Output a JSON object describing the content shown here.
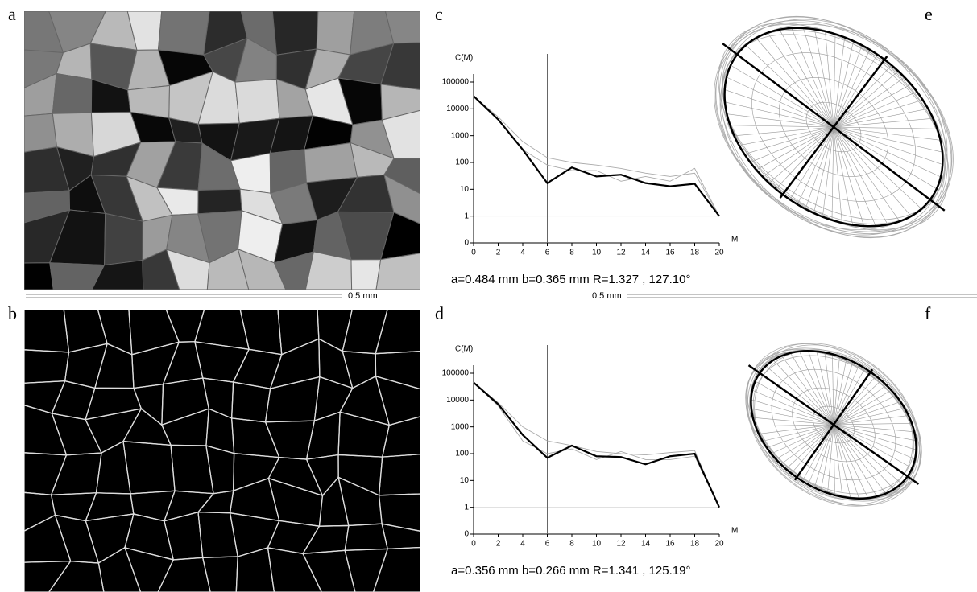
{
  "panel_labels": [
    "a",
    "b",
    "c",
    "d",
    "e",
    "f"
  ],
  "scale_bars": [
    "0.5 mm",
    "0.5 mm"
  ],
  "chart_data": [
    {
      "type": "line",
      "y_label": "C(M)",
      "x_label": "M",
      "caption": "a=0.484 mm  b=0.365 mm  R=1.327 , 127.10°",
      "x": [
        0,
        2,
        4,
        6,
        8,
        10,
        12,
        14,
        16,
        18,
        20
      ],
      "xlim": [
        0,
        20
      ],
      "xticks": [
        0,
        2,
        4,
        6,
        8,
        10,
        12,
        14,
        16,
        18,
        20
      ],
      "ylim": [
        0,
        100000
      ],
      "yticks": [
        0,
        1,
        10,
        100,
        1000,
        10000,
        100000
      ],
      "yscale": "log",
      "reference_line_x": 6,
      "reference_line_y": 1,
      "series": [
        {
          "color": "#aaaaaa",
          "values": [
            30000,
            5000,
            600,
            150,
            100,
            80,
            60,
            40,
            30,
            40,
            1
          ]
        },
        {
          "color": "#aaaaaa",
          "values": [
            30000,
            4000,
            300,
            80,
            50,
            50,
            20,
            30,
            20,
            60,
            1
          ]
        },
        {
          "color": "#000000",
          "values": [
            30000,
            4000,
            300,
            17,
            65,
            30,
            35,
            17,
            13,
            16,
            1
          ]
        }
      ]
    },
    {
      "type": "line",
      "y_label": "C(M)",
      "x_label": "M",
      "caption": "a=0.356 mm  b=0.266 mm  R=1.341 , 125.19°",
      "x": [
        0,
        2,
        4,
        6,
        8,
        10,
        12,
        14,
        16,
        18,
        20
      ],
      "xlim": [
        0,
        20
      ],
      "xticks": [
        0,
        2,
        4,
        6,
        8,
        10,
        12,
        14,
        16,
        18,
        20
      ],
      "ylim": [
        0,
        100000
      ],
      "yticks": [
        0,
        1,
        10,
        100,
        1000,
        10000,
        100000
      ],
      "yscale": "log",
      "reference_line_x": 6,
      "reference_line_y": 1,
      "series": [
        {
          "color": "#aaaaaa",
          "values": [
            45000,
            8000,
            1000,
            300,
            200,
            120,
            100,
            90,
            110,
            130,
            1
          ]
        },
        {
          "color": "#aaaaaa",
          "values": [
            45000,
            6000,
            300,
            100,
            150,
            60,
            120,
            60,
            60,
            80,
            1
          ]
        },
        {
          "color": "#000000",
          "values": [
            45000,
            7000,
            500,
            70,
            200,
            80,
            75,
            40,
            80,
            100,
            1
          ]
        }
      ]
    }
  ]
}
